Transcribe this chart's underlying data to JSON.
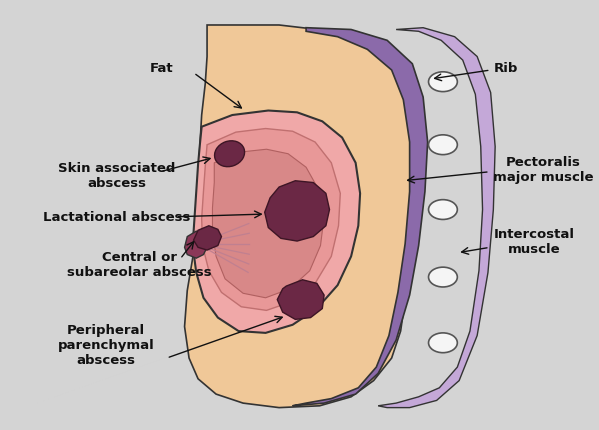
{
  "background_color": "#d4d4d4",
  "skin_color": "#f0c898",
  "pect_muscle_color": "#8b6aaa",
  "intercostal_color": "#c4a8d8",
  "rib_color": "#f5f5f5",
  "rib_border": "#555555",
  "breast_outer_color": "#f0a8a8",
  "breast_mid_color": "#e89898",
  "breast_inner_color": "#e08888",
  "abscess_color": "#6b2845",
  "abscess_border": "#3d1525",
  "nipple_color": "#8b3858",
  "duct_color": "#c08090",
  "outline_color": "#333333",
  "text_color": "#111111",
  "labels": {
    "fat": "Fat",
    "rib": "Rib",
    "pect": "Pectoralis\nmajor muscle",
    "intercostal": "Intercostal\nmuscle",
    "skin_abscess": "Skin associated\nabscess",
    "lactational": "Lactational abscess",
    "central": "Central or\nsubareolar abscess",
    "peripheral": "Peripheral\nparenchymal\nabscess"
  },
  "figsize": [
    5.99,
    4.31
  ],
  "dpi": 100
}
